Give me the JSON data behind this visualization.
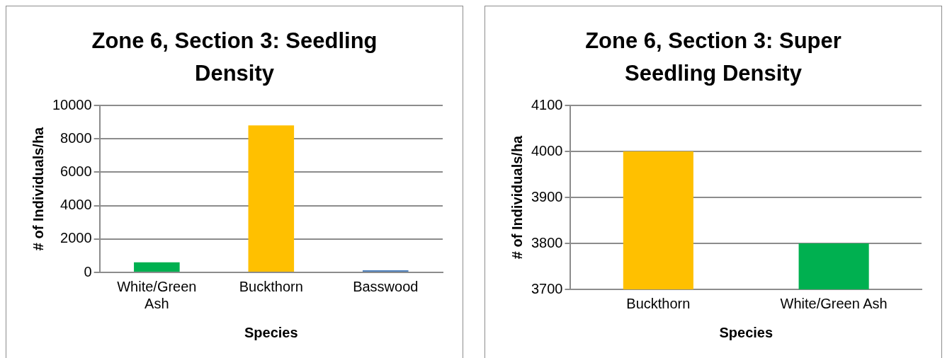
{
  "chart_data": [
    {
      "type": "bar",
      "title": "Zone 6, Section 3: Seedling Density",
      "xlabel": "Species",
      "ylabel": "# of Individuals/ha",
      "categories": [
        "White/Green Ash",
        "Buckthorn",
        "Basswood"
      ],
      "values": [
        600,
        8800,
        130
      ],
      "colors": [
        "#00b050",
        "#ffc000",
        "#4f81bd"
      ],
      "ylim": [
        0,
        10000
      ],
      "yticks": [
        0,
        2000,
        4000,
        6000,
        8000,
        10000
      ],
      "grid": "y"
    },
    {
      "type": "bar",
      "title": "Zone 6, Section 3: Super Seedling Density",
      "xlabel": "Species",
      "ylabel": "# of Individuals/ha",
      "categories": [
        "Buckthorn",
        "White/Green Ash"
      ],
      "values": [
        4000,
        3800
      ],
      "colors": [
        "#ffc000",
        "#00b050"
      ],
      "ylim": [
        3700,
        4100
      ],
      "yticks": [
        3700,
        3800,
        3900,
        4000,
        4100
      ],
      "grid": "y"
    }
  ]
}
